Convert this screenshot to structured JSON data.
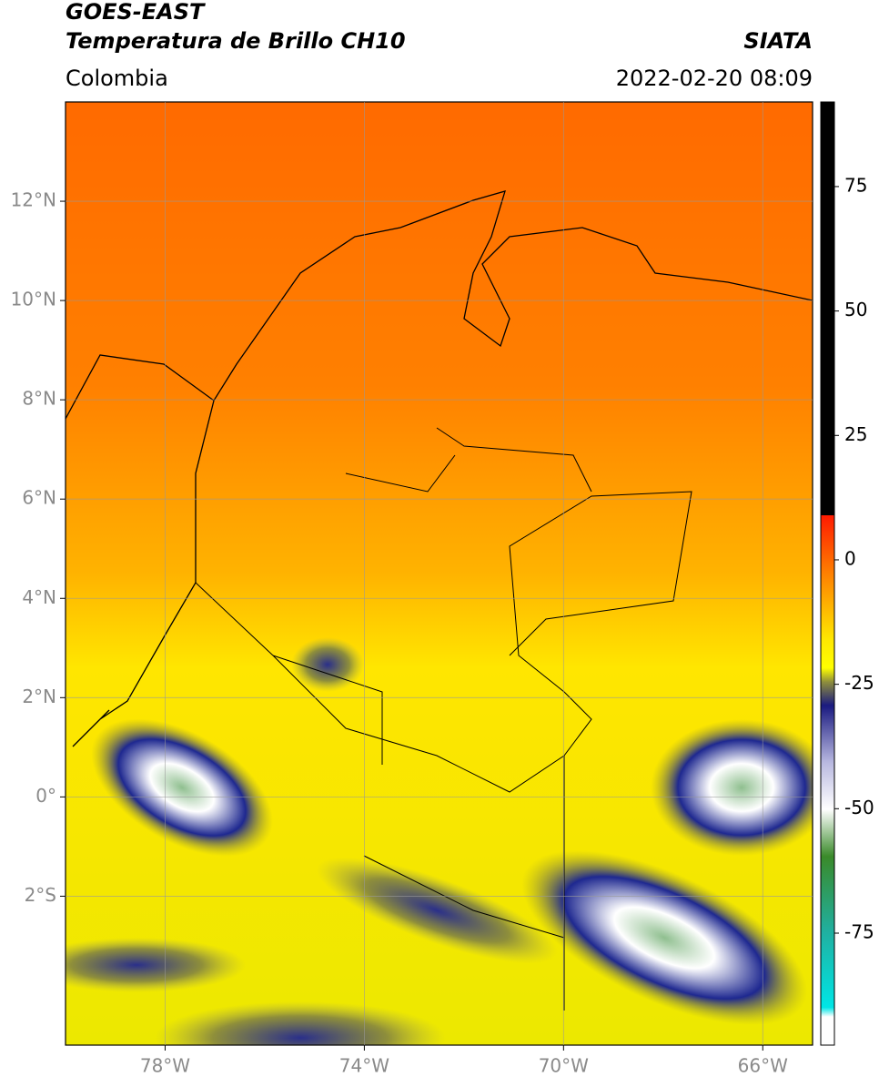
{
  "chart_data": {
    "type": "map",
    "title": "GOES-EAST",
    "subtitle": "Temperatura de Brillo CH10",
    "source": "SIATA",
    "region": "Colombia",
    "datetime": "2022-02-20 08:09",
    "xlim": [
      -80,
      -65
    ],
    "ylim": [
      -5,
      14
    ],
    "xticks": [
      {
        "value": -78,
        "label": "78°W"
      },
      {
        "value": -74,
        "label": "74°W"
      },
      {
        "value": -70,
        "label": "70°W"
      },
      {
        "value": -66,
        "label": "66°W"
      }
    ],
    "yticks": [
      {
        "value": 12,
        "label": "12°N"
      },
      {
        "value": 10,
        "label": "10°N"
      },
      {
        "value": 8,
        "label": "8°N"
      },
      {
        "value": 6,
        "label": "6°N"
      },
      {
        "value": 4,
        "label": "4°N"
      },
      {
        "value": 2,
        "label": "2°N"
      },
      {
        "value": 0,
        "label": "0°"
      },
      {
        "value": -2,
        "label": "2°S"
      }
    ],
    "grid": true,
    "colorbar_lim": [
      -97.5,
      92
    ],
    "colorbar_ticks": [
      75,
      50,
      25,
      0,
      -25,
      -50,
      -75
    ]
  }
}
